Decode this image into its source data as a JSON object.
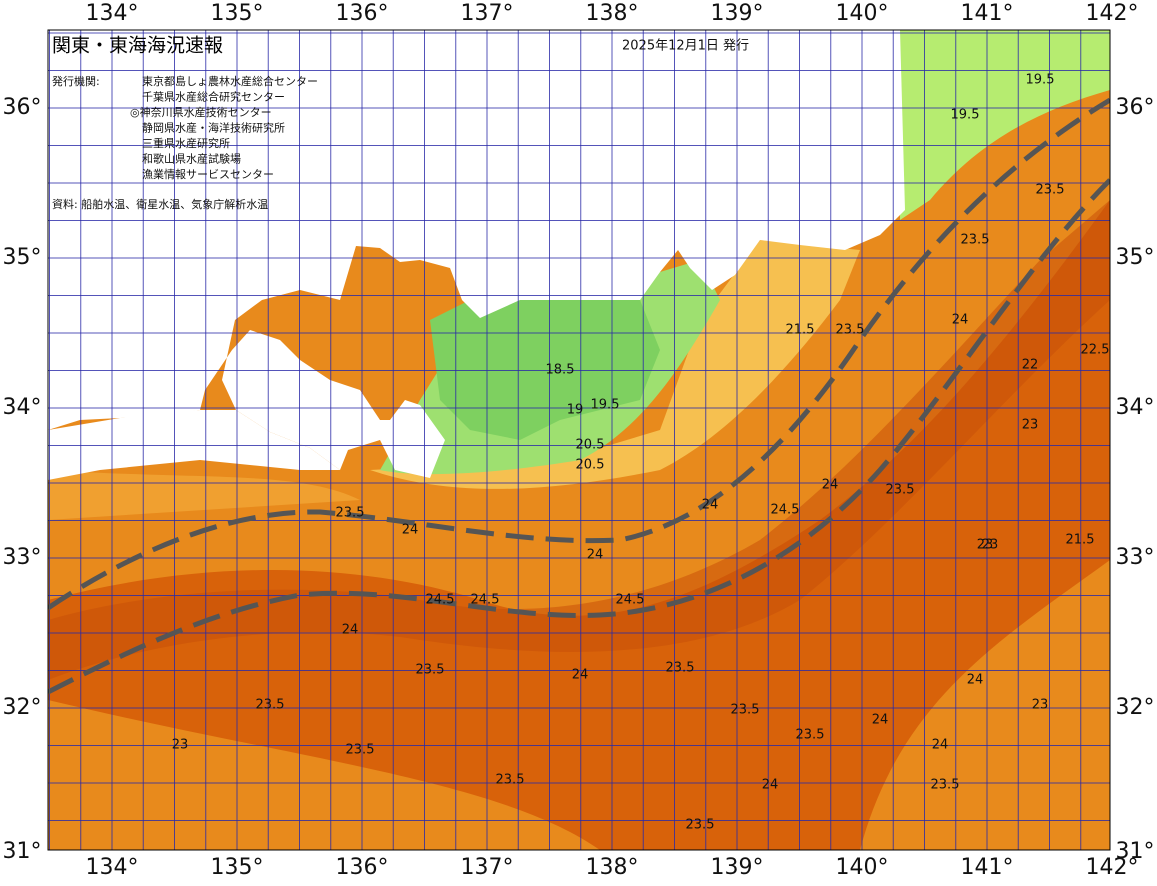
{
  "header": {
    "title": "関東・東海海況速報",
    "date": "2025年12月1日 発行",
    "issuer_label": "発行機関:",
    "issuers": [
      "東京都島しょ農林水産総合センター",
      "千葉県水産総合研究センター",
      "◎神奈川県水産技術センター",
      "静岡県水産・海洋技術研究所",
      "三重県水産研究所",
      "和歌山県水産試験場",
      "漁業情報サービスセンター"
    ],
    "source": "資料: 船舶水温、衛星水温、気象庁解析水温"
  },
  "map": {
    "lon_labels": [
      "134°",
      "135°",
      "136°",
      "137°",
      "138°",
      "139°",
      "140°",
      "141°",
      "142°"
    ],
    "lat_labels": [
      "36°",
      "35°",
      "34°",
      "33°",
      "32°",
      "31°"
    ],
    "contour_labels": [
      "19.5",
      "19.5",
      "18.5",
      "19",
      "19.5",
      "20.5",
      "20.5",
      "21.5",
      "22",
      "23",
      "23",
      "23",
      "23.5",
      "23.5",
      "23.5",
      "23.5",
      "23.5",
      "23.5",
      "24",
      "24",
      "24",
      "24",
      "24",
      "24.5",
      "24.5",
      "24.5",
      "24.5",
      "24",
      "23.5",
      "24",
      "23.5",
      "23",
      "23.5",
      "24",
      "23.5",
      "23.5",
      "24",
      "23.5",
      "24",
      "23",
      "22.5",
      "21.5",
      "23.5",
      "23.5",
      "24"
    ]
  }
}
